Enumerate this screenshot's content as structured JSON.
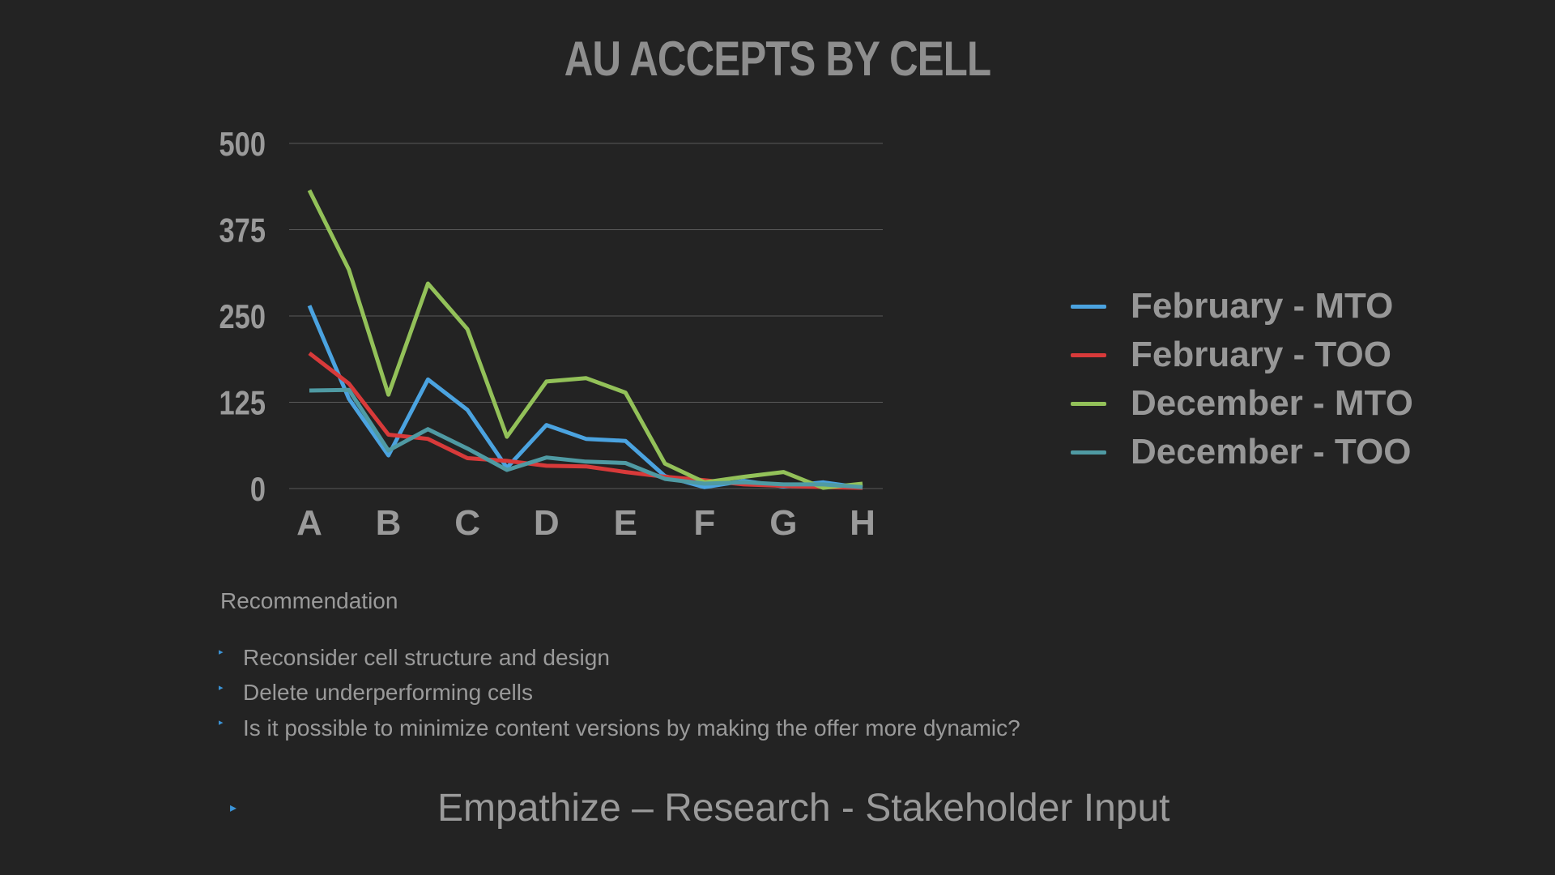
{
  "chart_data": {
    "type": "line",
    "title": "AU ACCEPTS BY CELL",
    "xlabel": "",
    "ylabel": "",
    "ylim": [
      0,
      500
    ],
    "yticks": [
      0,
      125,
      250,
      375,
      500
    ],
    "x_tick_labels": [
      "A",
      "B",
      "C",
      "D",
      "E",
      "F",
      "G",
      "H"
    ],
    "x": [
      0,
      0.5,
      1,
      1.5,
      2,
      2.5,
      3,
      3.5,
      4,
      4.5,
      5,
      5.5,
      6,
      6.5,
      7
    ],
    "grid": true,
    "legend_position": "right",
    "series": [
      {
        "name": "February - MTO",
        "color": "#4ba3e0",
        "values": [
          265,
          130,
          48,
          158,
          114,
          30,
          92,
          72,
          69,
          18,
          2,
          11,
          3,
          9,
          1
        ]
      },
      {
        "name": "February - TOO",
        "color": "#d83a3a",
        "values": [
          196,
          152,
          78,
          72,
          44,
          40,
          33,
          32,
          24,
          17,
          12,
          6,
          4,
          2,
          1
        ]
      },
      {
        "name": "December - MTO",
        "color": "#93c159",
        "values": [
          432,
          317,
          136,
          297,
          231,
          75,
          155,
          160,
          139,
          36,
          9,
          17,
          24,
          1,
          7
        ]
      },
      {
        "name": "December - TOO",
        "color": "#4f9aa3",
        "values": [
          142,
          143,
          55,
          86,
          58,
          27,
          45,
          39,
          37,
          14,
          7,
          9,
          6,
          6,
          2
        ]
      }
    ]
  },
  "recommendation": {
    "title": "Recommendation",
    "items": [
      "Reconsider cell structure and design",
      "Delete underperforming cells",
      "Is it possible to minimize content versions by making the offer more dynamic?"
    ],
    "bullet_glyph": "▸"
  },
  "footer": {
    "marker": "▸",
    "text": "Empathize – Research - Stakeholder Input"
  },
  "colors": {
    "background": "#232323",
    "accent": "#3b93d6",
    "grid": "#5a5a5a",
    "text": "#9a9a9a"
  }
}
